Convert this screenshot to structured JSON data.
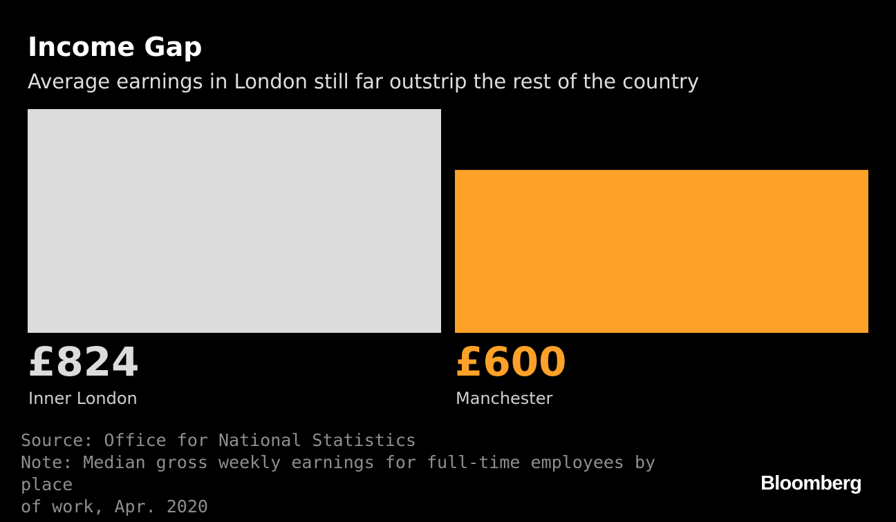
{
  "header": {
    "title": "Income Gap",
    "subtitle": "Average earnings in London still far outstrip the rest of the country"
  },
  "chart_data": {
    "type": "bar",
    "orientation": "vertical",
    "categories": [
      "Inner London",
      "Manchester"
    ],
    "values": [
      824,
      600
    ],
    "value_labels": [
      "£824",
      "£600"
    ],
    "colors": [
      "#dcdcdc",
      "#fda128"
    ],
    "unit": "£ per week",
    "title": "Income Gap",
    "subtitle": "Average earnings in London still far outstrip the rest of the country",
    "xlabel": "",
    "ylabel": "",
    "ylim": [
      0,
      824
    ],
    "grid": false,
    "legend": "none"
  },
  "footer": {
    "source": "Source: Office for National Statistics",
    "note_line1": "Note: Median gross weekly earnings for full-time employees by place",
    "note_line2": "of work, Apr. 2020"
  },
  "brand": {
    "name": "Bloomberg"
  }
}
